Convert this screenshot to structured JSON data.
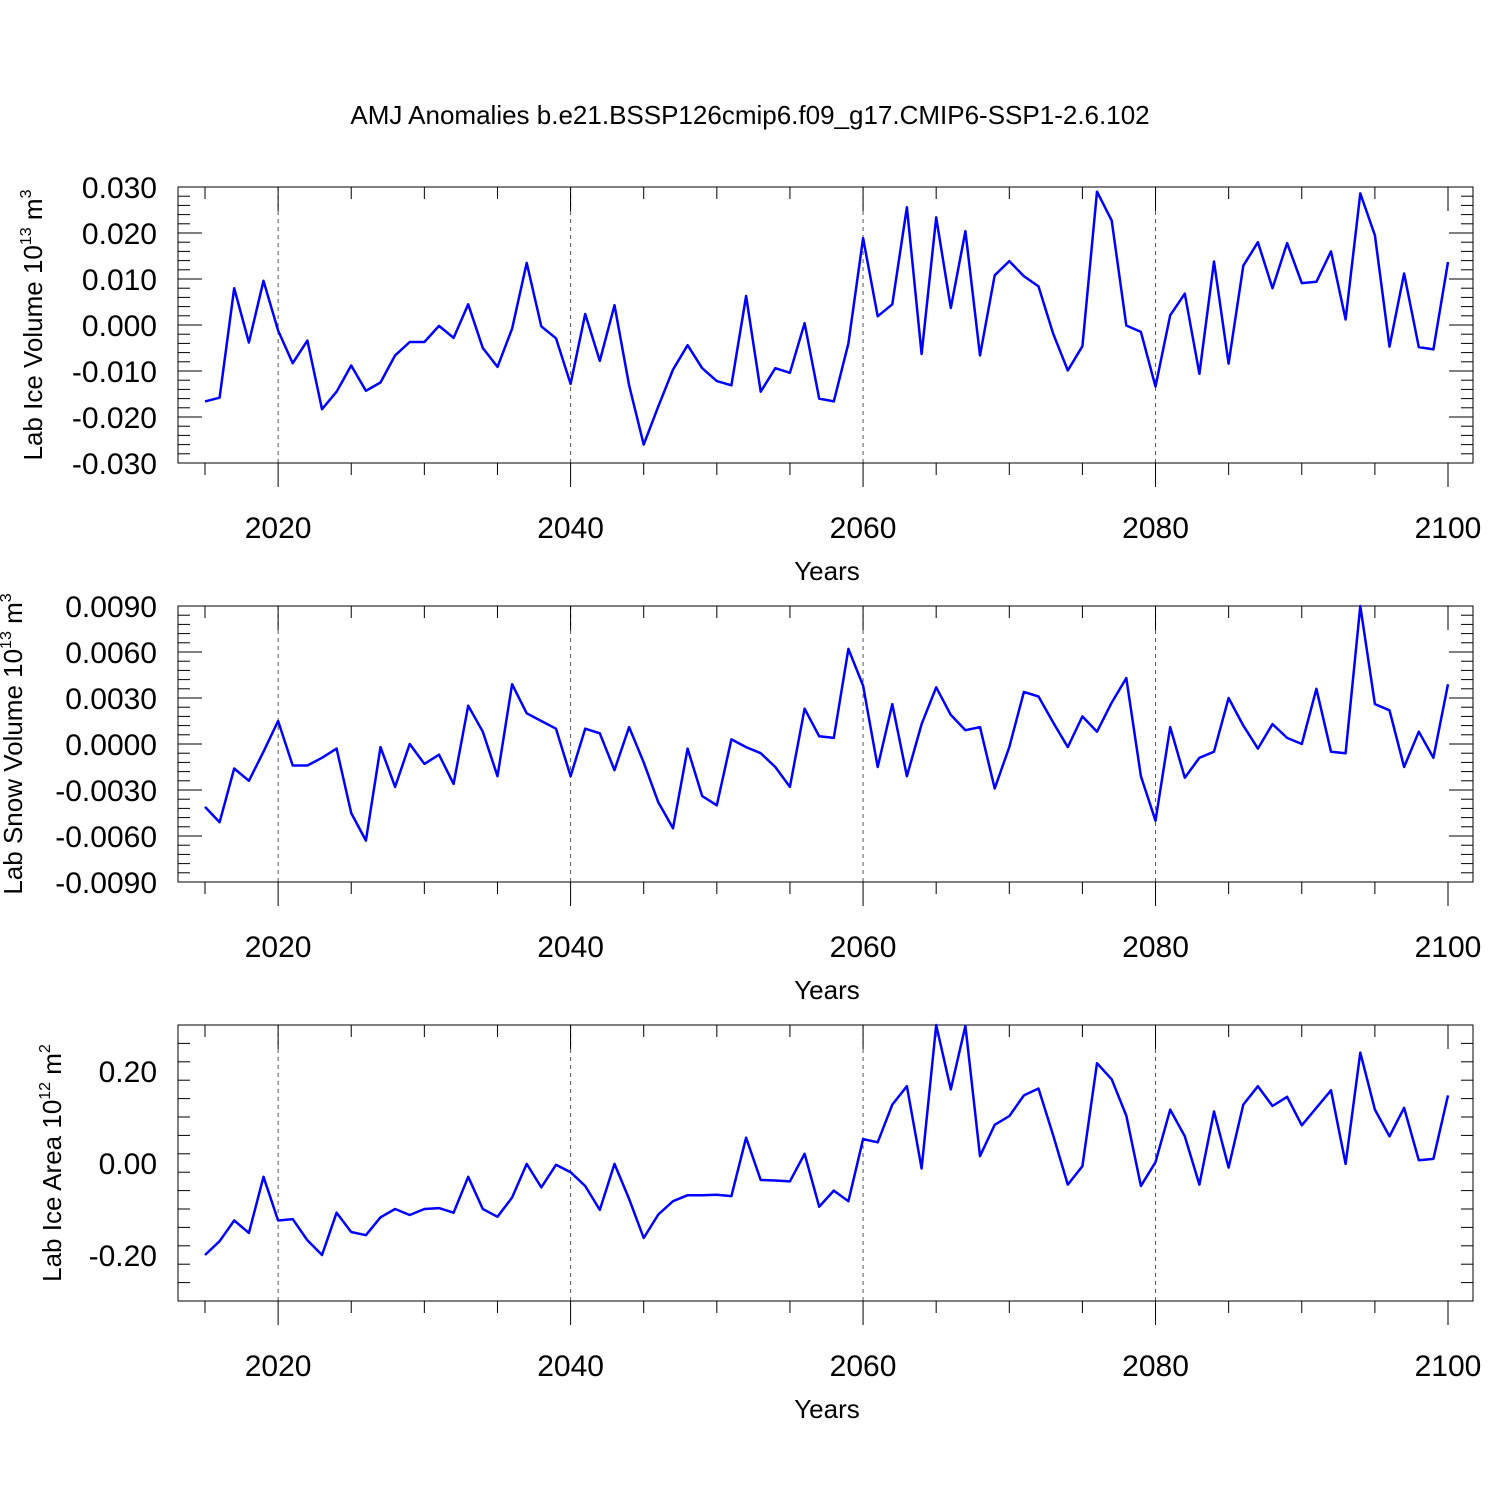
{
  "title": "AMJ Anomalies b.e21.BSSP126cmip6.f09_g17.CMIP6-SSP1-2.6.102",
  "line_color": "#0000ff",
  "chart_data": [
    {
      "type": "line",
      "ylabel": {
        "text": "Lab Ice Volume 10",
        "sup": "13",
        "unit": " m",
        "unit_sup": "3"
      },
      "xlabel": "Years",
      "xlim": [
        2015,
        2100
      ],
      "ylim": [
        -0.03,
        0.03
      ],
      "x_ticks": [
        "2020",
        "2040",
        "2060",
        "2080",
        "2100"
      ],
      "y_ticks": [
        "0.030",
        "0.020",
        "0.010",
        "0.000",
        "-0.010",
        "-0.020",
        "-0.030"
      ],
      "x_start": 2015,
      "values": [
        -0.0166,
        -0.0158,
        0.008,
        -0.0038,
        0.0096,
        -0.0012,
        -0.0083,
        -0.0034,
        -0.0183,
        -0.0145,
        -0.0088,
        -0.0143,
        -0.0125,
        -0.0066,
        -0.0037,
        -0.0037,
        -0.0002,
        -0.0028,
        0.0045,
        -0.005,
        -0.0091,
        -0.0008,
        0.0135,
        -0.0003,
        -0.0029,
        -0.0128,
        0.0024,
        -0.0078,
        0.0043,
        -0.0131,
        -0.026,
        -0.0177,
        -0.0097,
        -0.0044,
        -0.0094,
        -0.0122,
        -0.0131,
        0.0063,
        -0.0145,
        -0.0094,
        -0.0104,
        0.0004,
        -0.016,
        -0.0166,
        -0.004,
        0.0189,
        0.0019,
        0.0045,
        0.0256,
        -0.0063,
        0.0234,
        0.0037,
        0.0204,
        -0.0066,
        0.0108,
        0.0139,
        0.0106,
        0.0084,
        -0.0019,
        -0.0099,
        -0.0046,
        0.029,
        0.0227,
        -0.0001,
        -0.0015,
        -0.0134,
        0.0021,
        0.0068,
        -0.0106,
        0.0138,
        -0.0084,
        0.0129,
        0.018,
        0.008,
        0.0178,
        0.0091,
        0.0094,
        0.016,
        0.0012,
        0.0286,
        0.0195,
        -0.0047,
        0.0112,
        -0.0048,
        -0.0053,
        0.0137
      ]
    },
    {
      "type": "line",
      "ylabel": {
        "text": "Lab Snow Volume 10",
        "sup": "13",
        "unit": " m",
        "unit_sup": "3"
      },
      "xlabel": "Years",
      "xlim": [
        2015,
        2100
      ],
      "ylim": [
        -0.009,
        0.009
      ],
      "x_ticks": [
        "2020",
        "2040",
        "2060",
        "2080",
        "2100"
      ],
      "y_ticks": [
        "0.0090",
        "0.0060",
        "0.0030",
        "0.0000",
        "-0.0030",
        "-0.0060",
        "-0.0090"
      ],
      "x_start": 2015,
      "values": [
        -0.0041,
        -0.0051,
        -0.0016,
        -0.0024,
        -0.0005,
        0.0015,
        -0.0014,
        -0.0014,
        -0.0009,
        -0.0003,
        -0.0045,
        -0.0063,
        -0.0002,
        -0.0028,
        0.0,
        -0.0013,
        -0.0007,
        -0.0026,
        0.0025,
        0.0008,
        -0.0021,
        0.0039,
        0.002,
        0.0015,
        0.001,
        -0.0021,
        0.001,
        0.0007,
        -0.0017,
        0.0011,
        -0.0012,
        -0.0038,
        -0.0055,
        -0.0003,
        -0.0034,
        -0.004,
        0.0003,
        -0.0002,
        -0.0006,
        -0.0015,
        -0.0028,
        0.0023,
        0.0005,
        0.0004,
        0.0062,
        0.0038,
        -0.0015,
        0.0026,
        -0.0021,
        0.0013,
        0.0037,
        0.0019,
        0.0009,
        0.0011,
        -0.0029,
        -0.0002,
        0.0034,
        0.0031,
        0.0014,
        -0.0002,
        0.0018,
        0.0008,
        0.0027,
        0.0043,
        -0.0021,
        -0.005,
        0.0011,
        -0.0022,
        -0.0009,
        -0.0005,
        0.003,
        0.0012,
        -0.0003,
        0.0013,
        0.0004,
        0.0,
        0.0036,
        -0.0005,
        -0.0006,
        0.009,
        0.0026,
        0.0022,
        -0.0015,
        0.0008,
        -0.0009,
        0.0039
      ]
    },
    {
      "type": "line",
      "ylabel": {
        "text": "Lab Ice Area 10",
        "sup": "12",
        "unit": " m",
        "unit_sup": "2"
      },
      "xlabel": "Years",
      "xlim": [
        2015,
        2100
      ],
      "ylim": [
        -0.3,
        0.3
      ],
      "x_ticks": [
        "2020",
        "2040",
        "2060",
        "2080",
        "2100"
      ],
      "y_ticks": [
        "0.20",
        "0.00",
        "-0.20"
      ],
      "y_tick_values": [
        0.2,
        0.0,
        -0.2
      ],
      "x_start": 2015,
      "values": [
        -0.2,
        -0.17,
        -0.125,
        -0.152,
        -0.03,
        -0.125,
        -0.122,
        -0.168,
        -0.2,
        -0.108,
        -0.15,
        -0.157,
        -0.118,
        -0.1,
        -0.113,
        -0.1,
        -0.098,
        -0.108,
        -0.03,
        -0.1,
        -0.117,
        -0.075,
        -0.002,
        -0.053,
        -0.004,
        -0.02,
        -0.05,
        -0.102,
        -0.002,
        -0.078,
        -0.163,
        -0.112,
        -0.083,
        -0.07,
        -0.07,
        -0.069,
        -0.072,
        0.055,
        -0.037,
        -0.038,
        -0.04,
        0.02,
        -0.095,
        -0.06,
        -0.083,
        0.052,
        0.045,
        0.127,
        0.167,
        -0.012,
        0.3,
        0.16,
        0.298,
        0.015,
        0.083,
        0.102,
        0.147,
        0.162,
        0.06,
        -0.047,
        -0.007,
        0.217,
        0.182,
        0.103,
        -0.05,
        0.002,
        0.116,
        0.058,
        -0.047,
        0.112,
        -0.01,
        0.127,
        0.167,
        0.124,
        0.144,
        0.082,
        0.12,
        0.158,
        -0.002,
        0.24,
        0.116,
        0.058,
        0.12,
        0.006,
        0.009,
        0.147
      ]
    }
  ]
}
